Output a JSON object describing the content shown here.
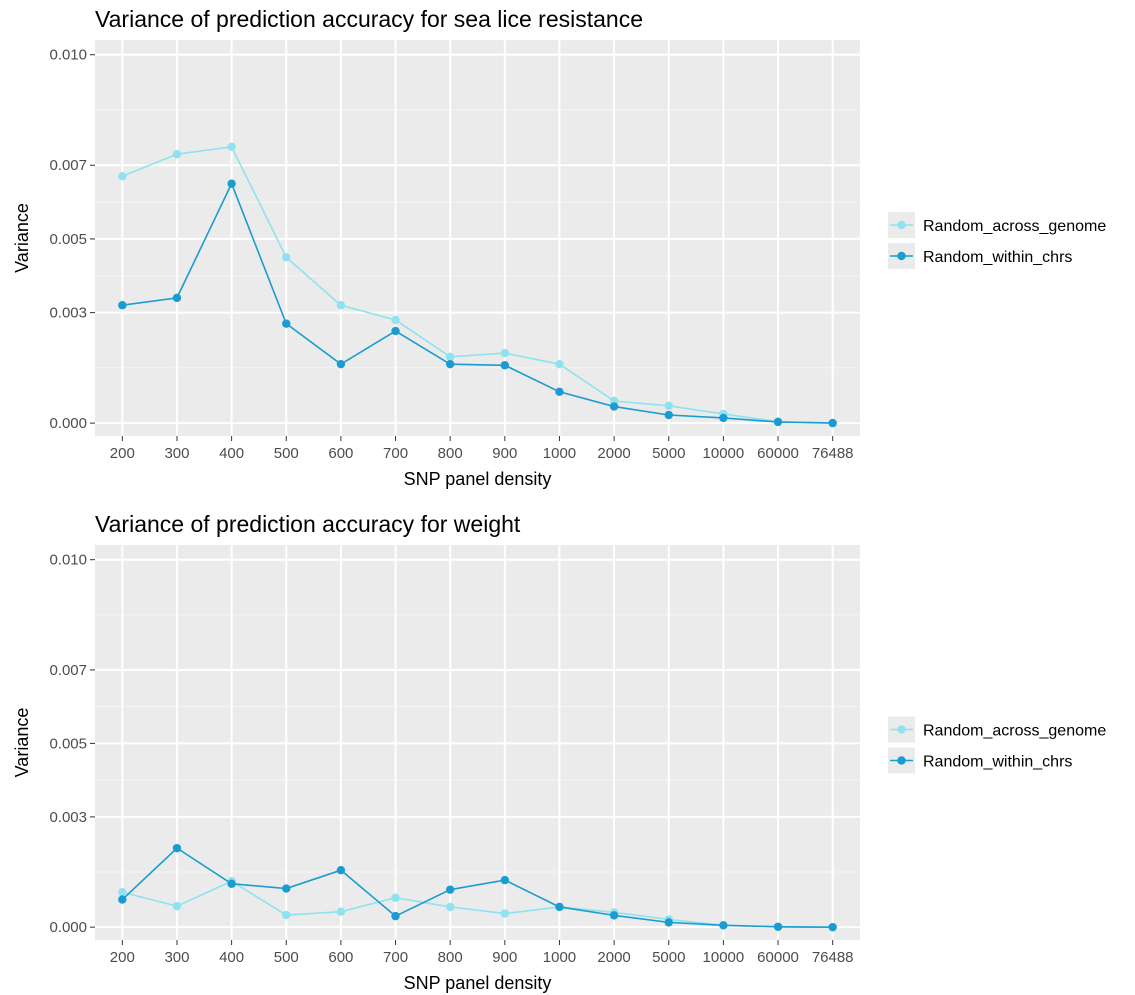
{
  "chart_data": [
    {
      "type": "line",
      "title": "Variance of prediction accuracy for sea lice resistance",
      "xlabel": "SNP panel density",
      "ylabel": "Variance",
      "categories": [
        "200",
        "300",
        "400",
        "500",
        "600",
        "700",
        "800",
        "900",
        "1000",
        "2000",
        "5000",
        "10000",
        "60000",
        "76488"
      ],
      "yticks": [
        "0.000",
        "0.003",
        "0.005",
        "0.007",
        "0.010"
      ],
      "ylim": [
        -0.00035,
        0.0104
      ],
      "grid": true,
      "legend_position": "right",
      "series": [
        {
          "name": "Random_across_genome",
          "color": "#8fe2ef",
          "values": [
            0.0067,
            0.0073,
            0.0075,
            0.0045,
            0.0032,
            0.0028,
            0.0018,
            0.0019,
            0.0016,
            0.0006,
            0.00047,
            0.00025,
            4e-05,
            0.0
          ]
        },
        {
          "name": "Random_within_chrs",
          "color": "#1a9cd0",
          "values": [
            0.0032,
            0.0034,
            0.0065,
            0.0027,
            0.0016,
            0.0025,
            0.0016,
            0.00157,
            0.00085,
            0.00045,
            0.00022,
            0.00014,
            3e-05,
            0.0
          ]
        }
      ]
    },
    {
      "type": "line",
      "title": "Variance of prediction accuracy for weight",
      "xlabel": "SNP panel density",
      "ylabel": "Variance",
      "categories": [
        "200",
        "300",
        "400",
        "500",
        "600",
        "700",
        "800",
        "900",
        "1000",
        "2000",
        "5000",
        "10000",
        "60000",
        "76488"
      ],
      "yticks": [
        "0.000",
        "0.003",
        "0.005",
        "0.007",
        "0.010"
      ],
      "ylim": [
        -0.00035,
        0.0104
      ],
      "grid": true,
      "legend_position": "right",
      "series": [
        {
          "name": "Random_across_genome",
          "color": "#8fe2ef",
          "values": [
            0.00095,
            0.00057,
            0.00125,
            0.00033,
            0.00042,
            0.0008,
            0.00055,
            0.00037,
            0.00055,
            0.0004,
            0.00021,
            5e-05,
            1e-05,
            0.0
          ]
        },
        {
          "name": "Random_within_chrs",
          "color": "#1a9cd0",
          "values": [
            0.00075,
            0.00215,
            0.00118,
            0.00105,
            0.00155,
            0.0003,
            0.00102,
            0.00128,
            0.00055,
            0.00032,
            0.00013,
            5e-05,
            1e-05,
            0.0
          ]
        }
      ]
    }
  ]
}
